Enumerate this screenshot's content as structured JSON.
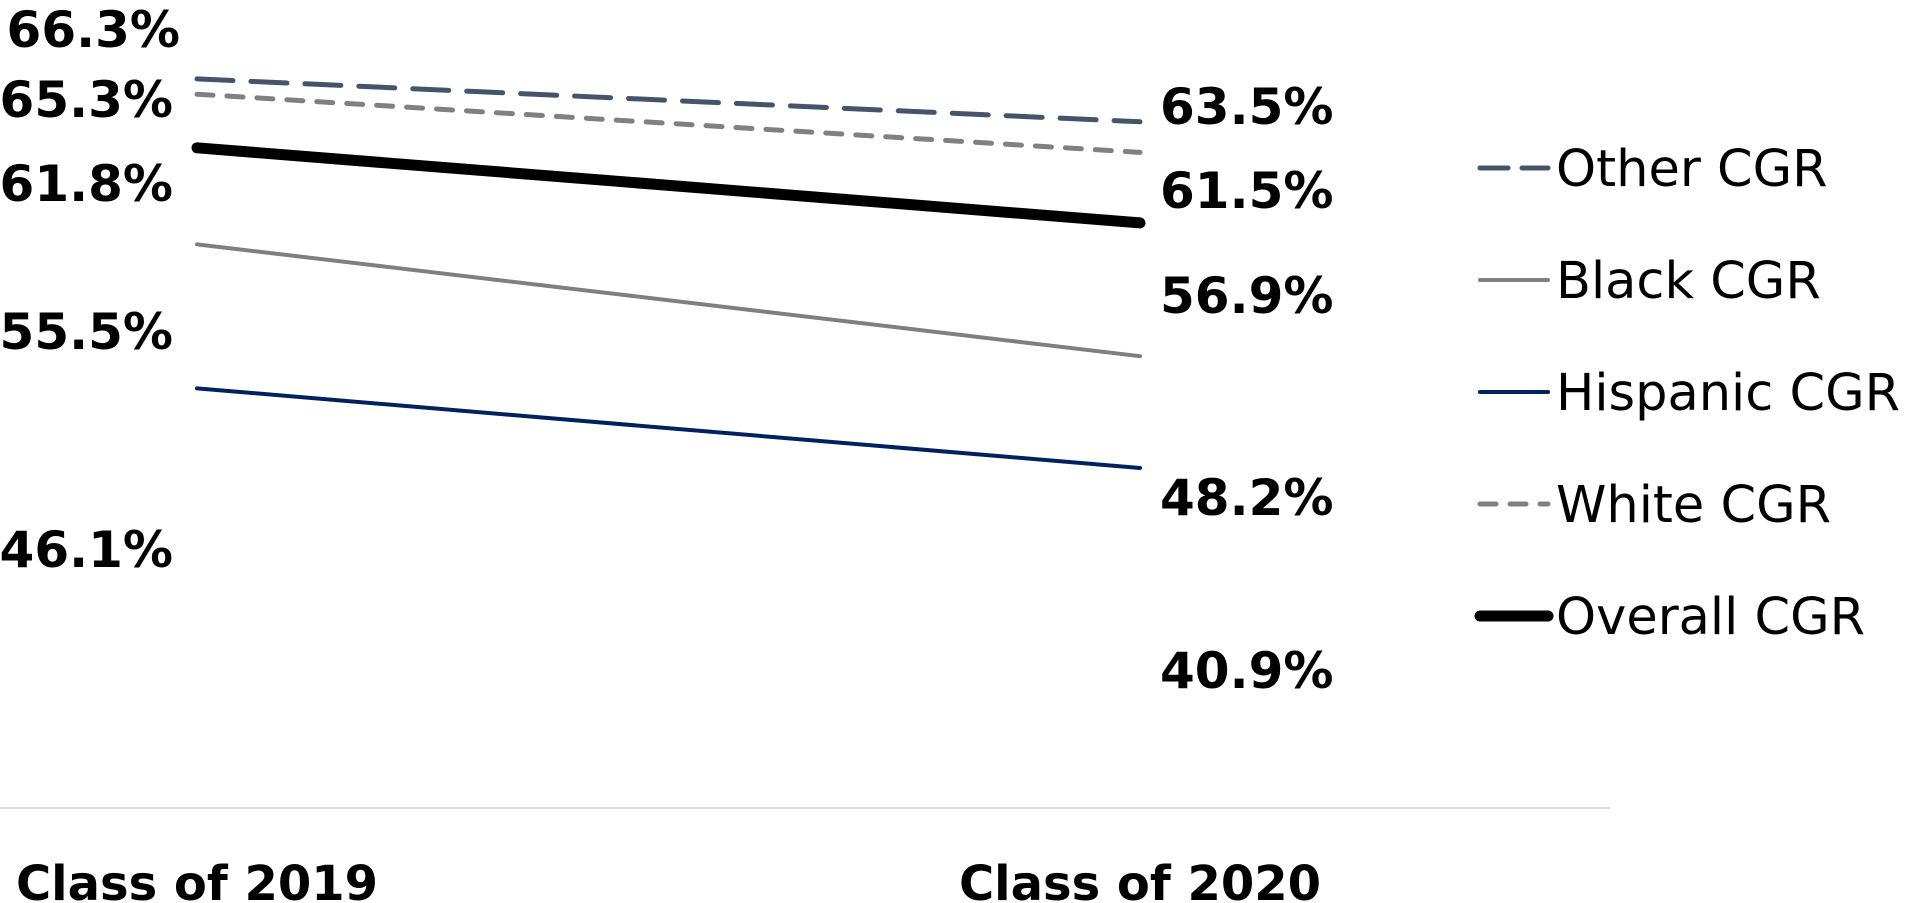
{
  "chart_data": {
    "type": "line",
    "categories": [
      "Class of 2019",
      "Class of 2020"
    ],
    "series": [
      {
        "name": "Other CGR",
        "values": [
          66.3,
          63.5
        ],
        "labels": [
          "66.3%",
          "63.5%"
        ],
        "color": "#44546A",
        "dash": "long-dash"
      },
      {
        "name": "Black CGR",
        "values": [
          55.5,
          48.2
        ],
        "labels": [
          "55.5%",
          "48.2%"
        ],
        "color": "#7F7F7F",
        "dash": "solid"
      },
      {
        "name": "Hispanic CGR",
        "values": [
          46.1,
          40.9
        ],
        "labels": [
          "46.1%",
          "40.9%"
        ],
        "color": "#002060",
        "dash": "solid"
      },
      {
        "name": "White CGR",
        "values": [
          65.3,
          61.5
        ],
        "labels": [
          "65.3%",
          "61.5%"
        ],
        "color": "#808080",
        "dash": "short-dash"
      },
      {
        "name": "Overall CGR",
        "values": [
          61.8,
          56.9
        ],
        "labels": [
          "61.8%",
          "56.9%"
        ],
        "color": "#000000",
        "dash": "solid-thick"
      }
    ],
    "legend_position": "right",
    "grid": false
  }
}
